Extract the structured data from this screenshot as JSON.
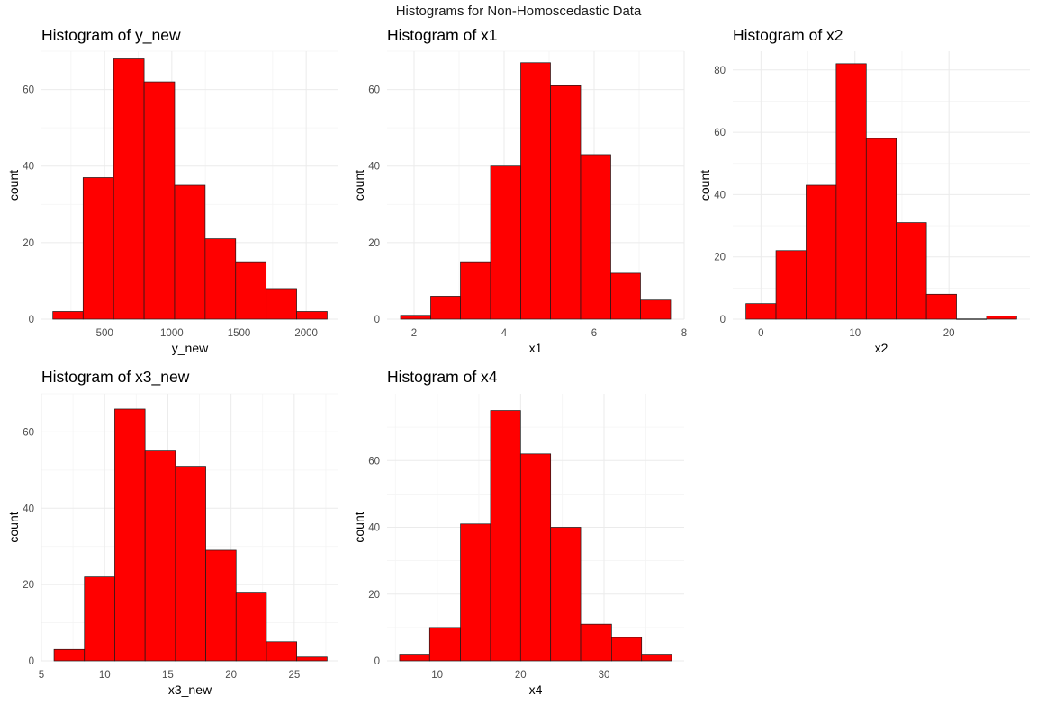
{
  "page": {
    "title": "Histograms for Non-Homoscedastic Data"
  },
  "colors": {
    "bar_fill": "#ff0000",
    "bar_stroke": "#1a1a1a",
    "grid_major": "#ebebeb",
    "grid_minor": "#f4f4f4",
    "tick_text": "#4d4d4d",
    "title_text": "#000000"
  },
  "chart_data": [
    {
      "type": "bar",
      "title": "Histogram of y_new",
      "xlabel": "y_new",
      "ylabel": "count",
      "bin_edges": [
        115,
        340,
        567,
        794,
        1021,
        1248,
        1475,
        1702,
        1929,
        2156
      ],
      "values": [
        2,
        37,
        68,
        62,
        35,
        21,
        15,
        8,
        2
      ],
      "xlim": [
        30,
        2240
      ],
      "ylim": [
        0,
        70
      ],
      "xticks": [
        500,
        1000,
        1500,
        2000
      ],
      "yticks": [
        0,
        20,
        40,
        60
      ],
      "grid": true
    },
    {
      "type": "bar",
      "title": "Histogram of x1",
      "xlabel": "x1",
      "ylabel": "count",
      "bin_edges": [
        1.7,
        2.37,
        3.03,
        3.7,
        4.37,
        5.03,
        5.7,
        6.37,
        7.03,
        7.7
      ],
      "values": [
        1,
        6,
        15,
        40,
        67,
        61,
        43,
        12,
        5
      ],
      "xlim": [
        1.4,
        8.0
      ],
      "ylim": [
        0,
        70
      ],
      "xticks": [
        2,
        4,
        6,
        8
      ],
      "yticks": [
        0,
        20,
        40,
        60
      ],
      "grid": true
    },
    {
      "type": "bar",
      "title": "Histogram of x2",
      "xlabel": "x2",
      "ylabel": "count",
      "bin_edges": [
        -1.6,
        1.6,
        4.8,
        8.0,
        11.2,
        14.4,
        17.6,
        20.8,
        24.0,
        27.2
      ],
      "values": [
        5,
        22,
        43,
        82,
        58,
        31,
        8,
        0,
        1
      ],
      "xlim": [
        -3.0,
        28.6
      ],
      "ylim": [
        0,
        86
      ],
      "xticks": [
        0,
        10,
        20
      ],
      "yticks": [
        0,
        20,
        40,
        60,
        80
      ],
      "grid": true
    },
    {
      "type": "bar",
      "title": "Histogram of x3_new",
      "xlabel": "x3_new",
      "ylabel": "count",
      "bin_edges": [
        6.0,
        8.4,
        10.8,
        13.2,
        15.6,
        18.0,
        20.4,
        22.8,
        25.2,
        27.6
      ],
      "values": [
        3,
        22,
        66,
        55,
        51,
        29,
        18,
        5,
        1
      ],
      "xlim": [
        5.0,
        28.5
      ],
      "ylim": [
        0,
        70
      ],
      "xticks": [
        5,
        10,
        15,
        20,
        25
      ],
      "yticks": [
        0,
        20,
        40,
        60
      ],
      "grid": true
    },
    {
      "type": "bar",
      "title": "Histogram of x4",
      "xlabel": "x4",
      "ylabel": "count",
      "bin_edges": [
        5.5,
        9.1,
        12.8,
        16.4,
        20.0,
        23.6,
        27.2,
        30.9,
        34.5,
        38.1
      ],
      "values": [
        2,
        10,
        41,
        75,
        62,
        40,
        11,
        7,
        2
      ],
      "xlim": [
        4.0,
        39.6
      ],
      "ylim": [
        0,
        80
      ],
      "xticks": [
        10,
        20,
        30
      ],
      "yticks": [
        0,
        20,
        40,
        60
      ],
      "grid": true
    }
  ]
}
